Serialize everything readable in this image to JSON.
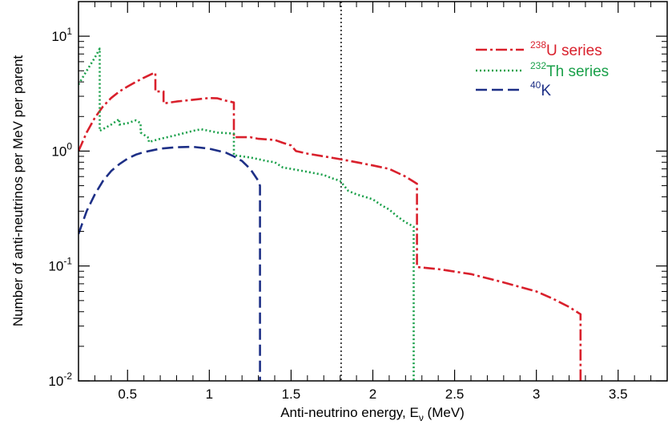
{
  "chart_data": {
    "type": "line",
    "title": "",
    "xlabel": "Anti-neutrino energy, E",
    "xlabel_subscript": "ν",
    "xlabel_unit": " (MeV)",
    "ylabel": "Number of anti-neutrinos per MeV per parent",
    "xlim": [
      0.2,
      3.8
    ],
    "ylim": [
      0.01,
      20
    ],
    "yscale": "log",
    "x_ticks": [
      {
        "value": 0.5,
        "label": "0.5"
      },
      {
        "value": 1.0,
        "label": "1"
      },
      {
        "value": 1.5,
        "label": "1.5"
      },
      {
        "value": 2.0,
        "label": "2"
      },
      {
        "value": 2.5,
        "label": "2.5"
      },
      {
        "value": 3.0,
        "label": "3"
      },
      {
        "value": 3.5,
        "label": "3.5"
      }
    ],
    "y_ticks": [
      {
        "value": 0.01,
        "base": "10",
        "exp": "-2"
      },
      {
        "value": 0.1,
        "base": "10",
        "exp": "-1"
      },
      {
        "value": 1,
        "base": "10",
        "exp": "0"
      },
      {
        "value": 10,
        "base": "10",
        "exp": "1"
      }
    ],
    "threshold_line": {
      "x": 1.806,
      "color": "#444444",
      "style": "dotted"
    },
    "legend_position": "top-right",
    "series": [
      {
        "name": "U series",
        "legend_sup": "238",
        "legend_main": "U series",
        "color": "#d9202c",
        "dash": "14,4,3,4",
        "points": [
          [
            0.2,
            1.0
          ],
          [
            0.25,
            1.45
          ],
          [
            0.3,
            1.95
          ],
          [
            0.35,
            2.45
          ],
          [
            0.4,
            2.9
          ],
          [
            0.45,
            3.3
          ],
          [
            0.5,
            3.65
          ],
          [
            0.55,
            4.0
          ],
          [
            0.6,
            4.35
          ],
          [
            0.65,
            4.7
          ],
          [
            0.67,
            4.8
          ],
          [
            0.67,
            3.3
          ],
          [
            0.72,
            3.3
          ],
          [
            0.72,
            2.6
          ],
          [
            0.8,
            2.7
          ],
          [
            0.9,
            2.8
          ],
          [
            1.0,
            2.9
          ],
          [
            1.05,
            2.88
          ],
          [
            1.1,
            2.75
          ],
          [
            1.15,
            2.65
          ],
          [
            1.15,
            1.32
          ],
          [
            1.25,
            1.32
          ],
          [
            1.3,
            1.28
          ],
          [
            1.4,
            1.25
          ],
          [
            1.45,
            1.18
          ],
          [
            1.5,
            1.12
          ],
          [
            1.53,
            1.0
          ],
          [
            1.6,
            0.95
          ],
          [
            1.7,
            0.9
          ],
          [
            1.8,
            0.85
          ],
          [
            1.9,
            0.8
          ],
          [
            2.0,
            0.75
          ],
          [
            2.1,
            0.7
          ],
          [
            2.2,
            0.6
          ],
          [
            2.27,
            0.52
          ],
          [
            2.27,
            0.098
          ],
          [
            2.4,
            0.094
          ],
          [
            2.6,
            0.085
          ],
          [
            2.8,
            0.072
          ],
          [
            3.0,
            0.06
          ],
          [
            3.1,
            0.052
          ],
          [
            3.2,
            0.044
          ],
          [
            3.27,
            0.038
          ],
          [
            3.27,
            0.01
          ]
        ]
      },
      {
        "name": "Th series",
        "legend_sup": "232",
        "legend_main": "Th series",
        "color": "#1aa04a",
        "dash": "2,3",
        "points": [
          [
            0.2,
            3.8
          ],
          [
            0.25,
            5.0
          ],
          [
            0.3,
            6.5
          ],
          [
            0.33,
            7.8
          ],
          [
            0.33,
            1.5
          ],
          [
            0.4,
            1.7
          ],
          [
            0.45,
            1.9
          ],
          [
            0.45,
            1.7
          ],
          [
            0.5,
            1.75
          ],
          [
            0.55,
            1.85
          ],
          [
            0.58,
            1.75
          ],
          [
            0.58,
            1.45
          ],
          [
            0.63,
            1.3
          ],
          [
            0.63,
            1.2
          ],
          [
            0.7,
            1.28
          ],
          [
            0.8,
            1.38
          ],
          [
            0.9,
            1.5
          ],
          [
            0.95,
            1.55
          ],
          [
            1.0,
            1.5
          ],
          [
            1.05,
            1.45
          ],
          [
            1.15,
            1.42
          ],
          [
            1.15,
            0.92
          ],
          [
            1.25,
            0.88
          ],
          [
            1.3,
            0.85
          ],
          [
            1.35,
            0.82
          ],
          [
            1.4,
            0.8
          ],
          [
            1.45,
            0.72
          ],
          [
            1.5,
            0.7
          ],
          [
            1.55,
            0.68
          ],
          [
            1.6,
            0.66
          ],
          [
            1.7,
            0.62
          ],
          [
            1.75,
            0.58
          ],
          [
            1.8,
            0.55
          ],
          [
            1.85,
            0.45
          ],
          [
            1.9,
            0.42
          ],
          [
            1.95,
            0.4
          ],
          [
            2.0,
            0.38
          ],
          [
            2.05,
            0.34
          ],
          [
            2.1,
            0.31
          ],
          [
            2.15,
            0.27
          ],
          [
            2.2,
            0.24
          ],
          [
            2.25,
            0.22
          ],
          [
            2.25,
            0.01
          ]
        ]
      },
      {
        "name": "K",
        "legend_sup": "40",
        "legend_main": "K",
        "color": "#1d2f86",
        "dash": "14,6",
        "points": [
          [
            0.2,
            0.19
          ],
          [
            0.25,
            0.3
          ],
          [
            0.3,
            0.42
          ],
          [
            0.35,
            0.55
          ],
          [
            0.4,
            0.67
          ],
          [
            0.45,
            0.77
          ],
          [
            0.5,
            0.86
          ],
          [
            0.55,
            0.93
          ],
          [
            0.6,
            0.98
          ],
          [
            0.7,
            1.05
          ],
          [
            0.8,
            1.08
          ],
          [
            0.9,
            1.09
          ],
          [
            1.0,
            1.05
          ],
          [
            1.1,
            0.97
          ],
          [
            1.15,
            0.9
          ],
          [
            1.2,
            0.82
          ],
          [
            1.25,
            0.7
          ],
          [
            1.3,
            0.55
          ],
          [
            1.31,
            0.5
          ],
          [
            1.31,
            0.01
          ]
        ]
      }
    ]
  }
}
